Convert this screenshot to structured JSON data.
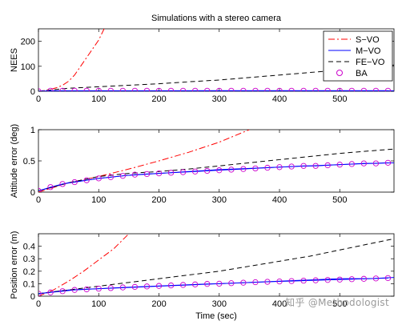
{
  "figure": {
    "title": "Simulations with a stereo camera",
    "xlabel": "Time (sec)",
    "watermark": "知乎 @Methodologist"
  },
  "legend": {
    "entries": [
      {
        "label": "S−VO",
        "color": "#ff0000",
        "style": "dashdot",
        "marker": "none"
      },
      {
        "label": "M−VO",
        "color": "#0000ff",
        "style": "solid",
        "marker": "none"
      },
      {
        "label": "FE−VO",
        "color": "#000000",
        "style": "dashed",
        "marker": "none"
      },
      {
        "label": "BA",
        "color": "#cc00cc",
        "style": "none",
        "marker": "circle"
      }
    ]
  },
  "chart_data": [
    {
      "type": "line",
      "title": "",
      "xlabel": "",
      "ylabel": "NEES",
      "xlim": [
        0,
        590
      ],
      "ylim": [
        0,
        250
      ],
      "xticks": [
        0,
        100,
        200,
        300,
        400,
        500
      ],
      "yticks": [
        0,
        100,
        200
      ],
      "grid": false,
      "legend_position": "top-right",
      "series": [
        {
          "name": "S−VO",
          "color": "#ff0000",
          "style": "dashdot",
          "x": [
            0,
            10,
            20,
            30,
            40,
            50,
            60,
            70,
            80,
            90,
            100,
            110
          ],
          "y": [
            0,
            3,
            8,
            14,
            24,
            40,
            65,
            100,
            135,
            170,
            205,
            255
          ]
        },
        {
          "name": "M−VO",
          "color": "#0000ff",
          "style": "solid",
          "x": [
            0,
            100,
            200,
            300,
            400,
            500,
            590
          ],
          "y": [
            0,
            1,
            1.5,
            2,
            2,
            2,
            2
          ]
        },
        {
          "name": "FE−VO",
          "color": "#000000",
          "style": "dashed",
          "x": [
            0,
            20,
            50,
            100,
            150,
            200,
            250,
            300,
            350,
            400,
            450,
            500,
            550,
            590
          ],
          "y": [
            0,
            5,
            12,
            18,
            24,
            30,
            38,
            45,
            55,
            65,
            75,
            85,
            95,
            105
          ]
        },
        {
          "name": "BA",
          "color": "#cc00cc",
          "style": "markers",
          "x": [
            0,
            20,
            40,
            60,
            80,
            100,
            120,
            140,
            160,
            180,
            200,
            220,
            240,
            260,
            280,
            300,
            320,
            340,
            360,
            380,
            400,
            420,
            440,
            460,
            480,
            500,
            520,
            540,
            560,
            580
          ],
          "y": [
            0,
            2,
            2,
            2,
            2,
            2,
            2,
            2,
            2,
            2,
            2,
            2,
            2,
            2,
            2,
            2,
            2,
            2,
            2,
            2,
            2,
            2,
            2,
            2,
            2,
            2,
            2,
            2,
            2,
            2
          ]
        }
      ]
    },
    {
      "type": "line",
      "title": "",
      "xlabel": "",
      "ylabel": "Attitude error (deg)",
      "xlim": [
        0,
        590
      ],
      "ylim": [
        0,
        1
      ],
      "xticks": [
        0,
        100,
        200,
        300,
        400,
        500
      ],
      "yticks": [
        0,
        0.5,
        1
      ],
      "grid": false,
      "series": [
        {
          "name": "S−VO",
          "color": "#ff0000",
          "style": "dashdot",
          "x": [
            0,
            50,
            100,
            150,
            200,
            250,
            300,
            350
          ],
          "y": [
            0,
            0.15,
            0.25,
            0.37,
            0.5,
            0.64,
            0.8,
            1.0
          ]
        },
        {
          "name": "M−VO",
          "color": "#0000ff",
          "style": "solid",
          "x": [
            0,
            50,
            100,
            150,
            200,
            250,
            300,
            350,
            400,
            450,
            500,
            550,
            590
          ],
          "y": [
            0.02,
            0.15,
            0.22,
            0.27,
            0.3,
            0.33,
            0.36,
            0.38,
            0.4,
            0.42,
            0.44,
            0.46,
            0.47
          ]
        },
        {
          "name": "FE−VO",
          "color": "#000000",
          "style": "dashed",
          "x": [
            0,
            50,
            100,
            150,
            200,
            250,
            300,
            350,
            400,
            450,
            500,
            550,
            590
          ],
          "y": [
            0.02,
            0.15,
            0.25,
            0.3,
            0.33,
            0.37,
            0.42,
            0.47,
            0.52,
            0.57,
            0.62,
            0.66,
            0.69
          ]
        },
        {
          "name": "BA",
          "color": "#cc00cc",
          "style": "markers",
          "x": [
            0,
            20,
            40,
            60,
            80,
            100,
            120,
            140,
            160,
            180,
            200,
            220,
            240,
            260,
            280,
            300,
            320,
            340,
            360,
            380,
            400,
            420,
            440,
            460,
            480,
            500,
            520,
            540,
            560,
            580
          ],
          "y": [
            0.02,
            0.08,
            0.13,
            0.16,
            0.19,
            0.22,
            0.24,
            0.26,
            0.28,
            0.29,
            0.3,
            0.31,
            0.32,
            0.33,
            0.34,
            0.35,
            0.36,
            0.37,
            0.38,
            0.39,
            0.4,
            0.41,
            0.42,
            0.42,
            0.43,
            0.44,
            0.45,
            0.46,
            0.46,
            0.47
          ]
        }
      ]
    },
    {
      "type": "line",
      "title": "",
      "xlabel": "Time (sec)",
      "ylabel": "Position error (m)",
      "xlim": [
        0,
        590
      ],
      "ylim": [
        0,
        0.5
      ],
      "xticks": [
        0,
        100,
        200,
        300,
        400,
        500
      ],
      "yticks": [
        0,
        0.1,
        0.2,
        0.3,
        0.4
      ],
      "grid": false,
      "series": [
        {
          "name": "S−VO",
          "color": "#ff0000",
          "style": "dashdot",
          "x": [
            0,
            25,
            50,
            75,
            100,
            125,
            150
          ],
          "y": [
            0,
            0.05,
            0.12,
            0.2,
            0.29,
            0.38,
            0.5
          ]
        },
        {
          "name": "M−VO",
          "color": "#0000ff",
          "style": "solid",
          "x": [
            0,
            50,
            100,
            150,
            200,
            250,
            300,
            350,
            400,
            450,
            500,
            550,
            590
          ],
          "y": [
            0.02,
            0.05,
            0.06,
            0.07,
            0.08,
            0.09,
            0.1,
            0.11,
            0.12,
            0.13,
            0.14,
            0.14,
            0.15
          ]
        },
        {
          "name": "FE−VO",
          "color": "#000000",
          "style": "dashed",
          "x": [
            0,
            50,
            100,
            150,
            200,
            250,
            300,
            350,
            400,
            450,
            500,
            550,
            590
          ],
          "y": [
            0.02,
            0.05,
            0.08,
            0.11,
            0.14,
            0.17,
            0.2,
            0.24,
            0.28,
            0.32,
            0.37,
            0.42,
            0.46
          ]
        },
        {
          "name": "BA",
          "color": "#cc00cc",
          "style": "markers",
          "x": [
            0,
            20,
            40,
            60,
            80,
            100,
            120,
            140,
            160,
            180,
            200,
            220,
            240,
            260,
            280,
            300,
            320,
            340,
            360,
            380,
            400,
            420,
            440,
            460,
            480,
            500,
            520,
            540,
            560,
            580
          ],
          "y": [
            0.02,
            0.03,
            0.04,
            0.05,
            0.055,
            0.06,
            0.065,
            0.07,
            0.074,
            0.078,
            0.082,
            0.086,
            0.09,
            0.094,
            0.098,
            0.1,
            0.104,
            0.108,
            0.112,
            0.115,
            0.118,
            0.121,
            0.124,
            0.127,
            0.13,
            0.133,
            0.136,
            0.139,
            0.142,
            0.145
          ]
        }
      ]
    }
  ]
}
